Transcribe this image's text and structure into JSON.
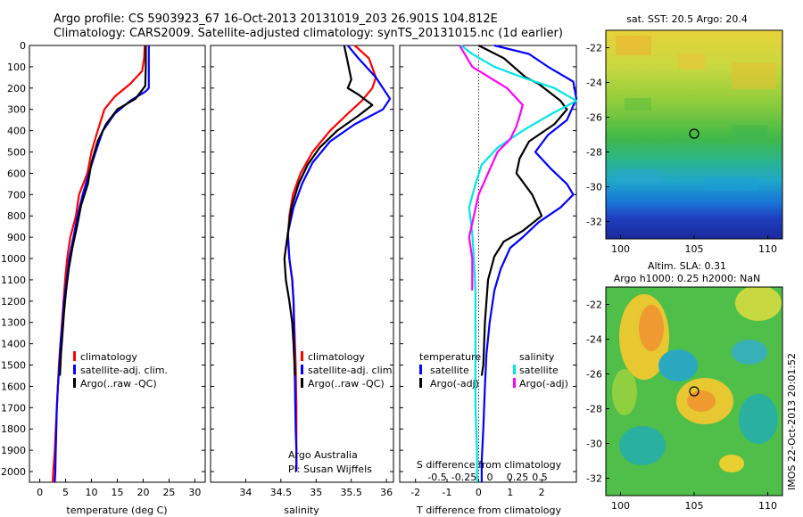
{
  "title_line1": "Argo profile: CS 5903923_67 16-Oct-2013 20131019_203 26.901S 104.812E",
  "title_line2": "Climatology: CARS2009. Satellite-adjusted climatology: synTS_20131015.nc (1d earlier)",
  "colors": {
    "climatology": "#ff0000",
    "satellite": "#0000ff",
    "argo": "#000000",
    "argo_salinity": "#ff00ff",
    "satellite_salinity": "#00e5e5"
  },
  "chart_data": [
    {
      "type": "line",
      "xlabel": "temperature (deg C)",
      "xlim": [
        -2,
        32
      ],
      "xticks": [
        0,
        5,
        10,
        15,
        20,
        25,
        30
      ],
      "ylim": [
        0,
        2050
      ],
      "yticks": [
        0,
        100,
        200,
        300,
        400,
        500,
        600,
        700,
        800,
        900,
        1000,
        1100,
        1200,
        1300,
        1400,
        1500,
        1600,
        1700,
        1800,
        1900,
        2000
      ],
      "legend": [
        "climatology",
        "satellite-adj. clim.",
        "Argo(..raw -QC)"
      ],
      "series": [
        {
          "name": "climatology",
          "color": "#ff0000",
          "points": [
            [
              20.3,
              0
            ],
            [
              20.2,
              60
            ],
            [
              19.8,
              120
            ],
            [
              17.5,
              180
            ],
            [
              14.5,
              240
            ],
            [
              12.5,
              300
            ],
            [
              11.2,
              400
            ],
            [
              10.0,
              500
            ],
            [
              9.2,
              600
            ],
            [
              7.6,
              700
            ],
            [
              7.0,
              800
            ],
            [
              5.9,
              900
            ],
            [
              5.3,
              1000
            ],
            [
              4.9,
              1100
            ],
            [
              4.6,
              1200
            ],
            [
              4.3,
              1300
            ],
            [
              4.0,
              1400
            ],
            [
              3.7,
              1500
            ],
            [
              3.5,
              1600
            ],
            [
              3.3,
              1700
            ],
            [
              3.1,
              1800
            ],
            [
              2.9,
              1900
            ],
            [
              2.6,
              2000
            ],
            [
              2.5,
              2050
            ]
          ]
        },
        {
          "name": "satellite-adj. clim.",
          "color": "#0000ff",
          "points": [
            [
              21.1,
              0
            ],
            [
              21.1,
              100
            ],
            [
              21.1,
              200
            ],
            [
              20.5,
              215
            ],
            [
              17.5,
              260
            ],
            [
              14.5,
              320
            ],
            [
              12.2,
              400
            ],
            [
              10.8,
              500
            ],
            [
              9.5,
              600
            ],
            [
              8.3,
              700
            ],
            [
              7.3,
              800
            ],
            [
              6.5,
              900
            ],
            [
              5.7,
              1000
            ],
            [
              5.2,
              1100
            ],
            [
              4.7,
              1200
            ],
            [
              4.4,
              1300
            ],
            [
              4.0,
              1400
            ],
            [
              3.8,
              1500
            ],
            [
              3.5,
              1600
            ],
            [
              3.3,
              1700
            ],
            [
              3.2,
              1800
            ],
            [
              3.1,
              1900
            ],
            [
              3.0,
              2000
            ],
            [
              2.9,
              2050
            ]
          ]
        },
        {
          "name": "Argo(..raw -QC)",
          "color": "#000000",
          "points": [
            [
              20.5,
              0
            ],
            [
              20.5,
              100
            ],
            [
              20.4,
              190
            ],
            [
              18.5,
              250
            ],
            [
              15.0,
              300
            ],
            [
              12.8,
              370
            ],
            [
              11.2,
              450
            ],
            [
              10.0,
              550
            ],
            [
              9.3,
              650
            ],
            [
              8.0,
              750
            ],
            [
              7.2,
              850
            ],
            [
              6.3,
              950
            ],
            [
              5.6,
              1050
            ],
            [
              5.1,
              1150
            ],
            [
              4.7,
              1250
            ],
            [
              4.4,
              1350
            ],
            [
              4.1,
              1450
            ],
            [
              3.9,
              1550
            ]
          ]
        }
      ]
    },
    {
      "type": "line",
      "xlabel": "salinity",
      "xlim": [
        33.5,
        36.1
      ],
      "xticks": [
        34,
        34.5,
        35,
        35.5,
        36
      ],
      "ylim": [
        0,
        2050
      ],
      "legend": [
        "climatology",
        "satellite-adj. clim.",
        "Argo(..raw -QC)"
      ],
      "annotation": [
        "Argo Australia",
        "PI: Susan Wijffels"
      ],
      "series": [
        {
          "name": "climatology",
          "color": "#ff0000",
          "points": [
            [
              35.55,
              0
            ],
            [
              35.75,
              60
            ],
            [
              35.85,
              150
            ],
            [
              35.8,
              200
            ],
            [
              35.65,
              260
            ],
            [
              35.45,
              320
            ],
            [
              35.2,
              400
            ],
            [
              34.95,
              500
            ],
            [
              34.78,
              600
            ],
            [
              34.67,
              700
            ],
            [
              34.62,
              800
            ],
            [
              34.6,
              900
            ],
            [
              34.62,
              1000
            ],
            [
              34.66,
              1100
            ],
            [
              34.68,
              1200
            ],
            [
              34.69,
              1300
            ],
            [
              34.7,
              1400
            ],
            [
              34.71,
              1500
            ],
            [
              34.72,
              1700
            ],
            [
              34.72,
              1900
            ],
            [
              34.72,
              2000
            ]
          ]
        },
        {
          "name": "satellite-adj. clim.",
          "color": "#0000ff",
          "points": [
            [
              35.45,
              0
            ],
            [
              35.6,
              60
            ],
            [
              35.85,
              150
            ],
            [
              36.05,
              250
            ],
            [
              35.95,
              300
            ],
            [
              35.55,
              370
            ],
            [
              35.2,
              450
            ],
            [
              34.95,
              550
            ],
            [
              34.8,
              650
            ],
            [
              34.68,
              760
            ],
            [
              34.6,
              880
            ],
            [
              34.62,
              1000
            ],
            [
              34.66,
              1100
            ],
            [
              34.68,
              1200
            ],
            [
              34.69,
              1400
            ],
            [
              34.7,
              1600
            ],
            [
              34.71,
              1800
            ],
            [
              34.72,
              1900
            ],
            [
              34.72,
              2000
            ]
          ]
        },
        {
          "name": "Argo(..raw -QC)",
          "color": "#000000",
          "points": [
            [
              35.4,
              0
            ],
            [
              35.45,
              80
            ],
            [
              35.5,
              160
            ],
            [
              35.45,
              200
            ],
            [
              35.6,
              230
            ],
            [
              35.8,
              280
            ],
            [
              35.6,
              330
            ],
            [
              35.3,
              400
            ],
            [
              35.05,
              480
            ],
            [
              34.88,
              560
            ],
            [
              34.75,
              650
            ],
            [
              34.65,
              760
            ],
            [
              34.6,
              880
            ],
            [
              34.55,
              1000
            ],
            [
              34.57,
              1100
            ],
            [
              34.62,
              1200
            ],
            [
              34.66,
              1300
            ],
            [
              34.68,
              1400
            ],
            [
              34.7,
              1550
            ]
          ]
        }
      ]
    },
    {
      "type": "line",
      "xlabel": "T difference from climatology",
      "xlim": [
        -2.5,
        3.1
      ],
      "xticks": [
        -2,
        -1,
        0,
        1,
        2
      ],
      "secondary_xlabel": "S difference from climatology",
      "secondary_xticks": [
        "-0.5",
        "-0.25",
        "0",
        "0.25",
        "0.5"
      ],
      "ylim": [
        0,
        2050
      ],
      "legend_temperature_title": "temperature",
      "legend_salinity_title": "salinity",
      "series": [
        {
          "name": "satellite",
          "color": "#0000ff",
          "points": [
            [
              0.5,
              0
            ],
            [
              1.6,
              40
            ],
            [
              2.2,
              100
            ],
            [
              3.0,
              170
            ],
            [
              3.1,
              250
            ],
            [
              2.8,
              350
            ],
            [
              2.2,
              420
            ],
            [
              1.8,
              500
            ],
            [
              2.3,
              580
            ],
            [
              2.8,
              650
            ],
            [
              3.0,
              700
            ],
            [
              2.6,
              760
            ],
            [
              1.9,
              830
            ],
            [
              1.4,
              900
            ],
            [
              1.0,
              950
            ],
            [
              0.7,
              1050
            ],
            [
              0.5,
              1150
            ],
            [
              0.35,
              1300
            ],
            [
              0.25,
              1450
            ],
            [
              0.2,
              1600
            ],
            [
              0.15,
              1800
            ],
            [
              0.1,
              1950
            ],
            [
              0.1,
              2050
            ]
          ]
        },
        {
          "name": "Argo(-adj)",
          "color": "#000000",
          "points": [
            [
              0.0,
              0
            ],
            [
              0.8,
              60
            ],
            [
              1.5,
              150
            ],
            [
              1.9,
              180
            ],
            [
              2.6,
              260
            ],
            [
              2.8,
              300
            ],
            [
              2.4,
              370
            ],
            [
              1.6,
              450
            ],
            [
              1.3,
              530
            ],
            [
              1.2,
              600
            ],
            [
              1.7,
              700
            ],
            [
              2.0,
              800
            ],
            [
              1.4,
              870
            ],
            [
              0.8,
              920
            ],
            [
              0.5,
              990
            ],
            [
              0.3,
              1100
            ],
            [
              0.2,
              1300
            ],
            [
              0.15,
              1500
            ],
            [
              0.1,
              1550
            ]
          ]
        },
        {
          "name": "satellite (salinity)",
          "color": "#00e5e5",
          "points": [
            [
              -0.55,
              0
            ],
            [
              -0.2,
              40
            ],
            [
              0.5,
              100
            ],
            [
              1.4,
              150
            ],
            [
              2.4,
              200
            ],
            [
              3.1,
              260
            ],
            [
              2.2,
              330
            ],
            [
              1.4,
              400
            ],
            [
              0.6,
              480
            ],
            [
              0.1,
              560
            ],
            [
              -0.1,
              650
            ],
            [
              -0.3,
              760
            ],
            [
              -0.2,
              880
            ],
            [
              -0.15,
              1000
            ],
            [
              -0.1,
              1150
            ],
            [
              -0.1,
              1300
            ],
            [
              -0.1,
              1500
            ],
            [
              -0.1,
              1700
            ],
            [
              -0.05,
              1900
            ],
            [
              -0.05,
              2050
            ]
          ]
        },
        {
          "name": "Argo(-adj) (salinity)",
          "color": "#ff00ff",
          "points": [
            [
              -0.6,
              0
            ],
            [
              -0.2,
              100
            ],
            [
              0.9,
              200
            ],
            [
              1.4,
              280
            ],
            [
              1.3,
              330
            ],
            [
              1.2,
              380
            ],
            [
              1.0,
              440
            ],
            [
              0.6,
              500
            ],
            [
              0.3,
              600
            ],
            [
              0.0,
              700
            ],
            [
              -0.15,
              800
            ],
            [
              -0.3,
              900
            ],
            [
              -0.2,
              1000
            ],
            [
              -0.2,
              1150
            ]
          ]
        }
      ]
    }
  ],
  "maps": [
    {
      "title": "sat. SST: 20.5 Argo: 20.4",
      "title2": "",
      "xticks": [
        100,
        105,
        110
      ],
      "yticks": [
        -22,
        -24,
        -26,
        -28,
        -30,
        -32
      ],
      "marker": [
        104.8,
        -26.9
      ]
    },
    {
      "title": "Altim. SLA: 0.31",
      "title2": "Argo h1000: 0.25 h2000: NaN",
      "xticks": [
        100,
        105,
        110
      ],
      "yticks": [
        -22,
        -24,
        -26,
        -28,
        -30,
        -32
      ],
      "marker": [
        104.8,
        -26.9
      ]
    }
  ],
  "watermark": "IMOS 22-Oct-2013 20:01:52"
}
